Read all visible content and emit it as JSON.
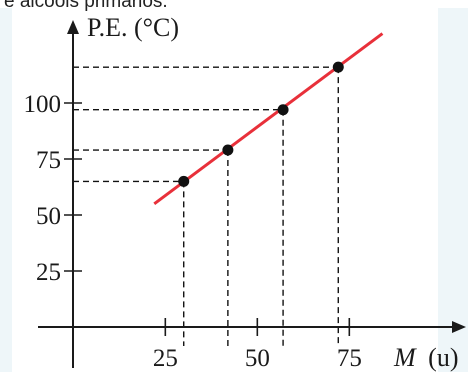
{
  "top_text": "e álcoois primários.",
  "chart_data": {
    "type": "scatter",
    "title": "",
    "xlabel_var": "M",
    "xlabel_unit": "(u)",
    "ylabel": "P.E. (°C)",
    "x_ticks": [
      25,
      50,
      75
    ],
    "y_ticks": [
      25,
      50,
      75,
      100
    ],
    "xlim": [
      0,
      100
    ],
    "ylim": [
      0,
      140
    ],
    "series": [
      {
        "points": [
          {
            "x": 30,
            "y": 65
          },
          {
            "x": 42,
            "y": 79
          },
          {
            "x": 57,
            "y": 97
          },
          {
            "x": 72,
            "y": 116
          }
        ]
      }
    ],
    "trend_line": {
      "x": [
        22,
        84
      ],
      "y": [
        55,
        131
      ]
    },
    "colors": {
      "trend_line": "#e8303a",
      "points": "#111111",
      "axes": "#1a1a1a"
    }
  }
}
